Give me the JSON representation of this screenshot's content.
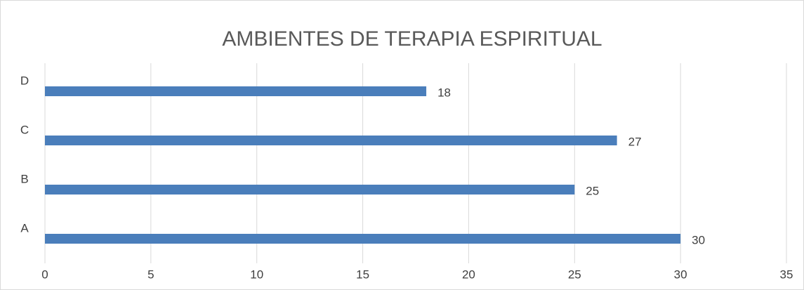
{
  "chart_data": {
    "type": "bar",
    "orientation": "horizontal",
    "title": "AMBIENTES DE TERAPIA ESPIRITUAL",
    "categories": [
      "A",
      "B",
      "C",
      "D"
    ],
    "values": [
      30,
      25,
      27,
      18
    ],
    "color": "#4a7ebb",
    "xlim": [
      0,
      35
    ],
    "xticks": [
      0,
      5,
      10,
      15,
      20,
      25,
      30,
      35
    ],
    "grid": true
  }
}
